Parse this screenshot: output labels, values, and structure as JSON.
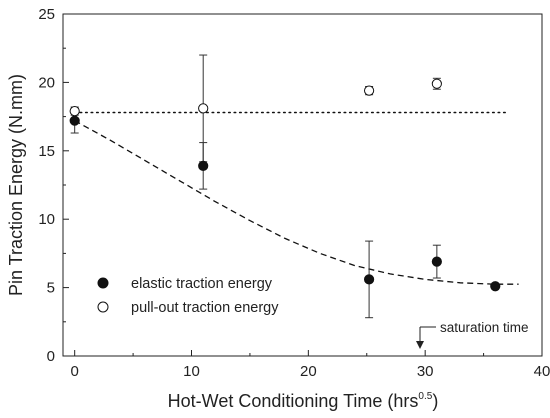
{
  "chart_data": {
    "type": "scatter",
    "xlabel": "Hot-Wet Conditioning Time (hrs",
    "xlabel_superscript": "0.5",
    "xlabel_suffix": ")",
    "ylabel": "Pin Traction Energy (N.mm)",
    "xlim": [
      -1,
      40
    ],
    "ylim": [
      0,
      25
    ],
    "xticks": [
      0,
      10,
      20,
      30,
      40
    ],
    "yticks": [
      0,
      5,
      10,
      15,
      20,
      25
    ],
    "xtick_labels": [
      "0",
      "10",
      "20",
      "30",
      "40"
    ],
    "ytick_labels": [
      "0",
      "5",
      "10",
      "15",
      "20",
      "25"
    ],
    "grid": false,
    "legend_position": "lower-left",
    "series": [
      {
        "name": "elastic traction energy",
        "marker": "filled-circle",
        "points": [
          {
            "x": 0,
            "y": 17.2,
            "err": 0.9
          },
          {
            "x": 11,
            "y": 13.9,
            "err": 1.7
          },
          {
            "x": 25.2,
            "y": 5.6,
            "err": 2.8
          },
          {
            "x": 31,
            "y": 6.9,
            "err": 1.2
          },
          {
            "x": 36,
            "y": 5.1,
            "err": 0
          }
        ]
      },
      {
        "name": "pull-out traction energy",
        "marker": "open-circle",
        "points": [
          {
            "x": 0,
            "y": 17.9,
            "err": 0.3
          },
          {
            "x": 11,
            "y": 18.1,
            "err": 3.9
          },
          {
            "x": 25.2,
            "y": 19.4,
            "err": 0.3
          },
          {
            "x": 31,
            "y": 19.9,
            "err": 0.4
          }
        ]
      }
    ],
    "reference_lines": [
      {
        "style": "dotted",
        "y": 17.8,
        "x_range": [
          0,
          37
        ]
      },
      {
        "style": "dashed",
        "points": [
          [
            0,
            17.2
          ],
          [
            3,
            15.8
          ],
          [
            6,
            14.3
          ],
          [
            9,
            12.8
          ],
          [
            12,
            11.3
          ],
          [
            15,
            9.9
          ],
          [
            18,
            8.6
          ],
          [
            21,
            7.5
          ],
          [
            24,
            6.6
          ],
          [
            27,
            6.0
          ],
          [
            30,
            5.6
          ],
          [
            33,
            5.35
          ],
          [
            36,
            5.25
          ],
          [
            38,
            5.25
          ]
        ]
      }
    ],
    "annotation": {
      "text": "saturation time",
      "x": 29.5
    }
  }
}
